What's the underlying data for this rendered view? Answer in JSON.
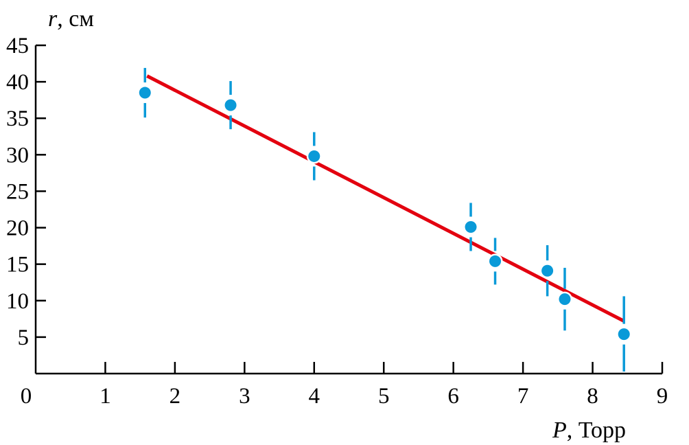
{
  "chart_data": {
    "type": "scatter",
    "xlabel_var": "P",
    "xlabel_unit": ", Торр",
    "ylabel_var": "r",
    "ylabel_unit": ", см",
    "xlim": [
      0,
      9
    ],
    "ylim": [
      0,
      45
    ],
    "x_ticks": [
      "0",
      "1",
      "2",
      "3",
      "4",
      "5",
      "6",
      "7",
      "8",
      "9"
    ],
    "y_ticks": [
      "5",
      "10",
      "15",
      "20",
      "25",
      "30",
      "35",
      "40",
      "45"
    ],
    "grid": false,
    "points": [
      {
        "x": 1.57,
        "y": 38.5,
        "err": 3.4
      },
      {
        "x": 2.8,
        "y": 36.8,
        "err": 3.3
      },
      {
        "x": 4.0,
        "y": 29.8,
        "err": 3.3
      },
      {
        "x": 6.25,
        "y": 20.1,
        "err": 3.3
      },
      {
        "x": 6.6,
        "y": 15.4,
        "err": 3.2
      },
      {
        "x": 7.35,
        "y": 14.1,
        "err": 3.5
      },
      {
        "x": 7.6,
        "y": 10.2,
        "err": 4.3
      },
      {
        "x": 8.45,
        "y": 5.4,
        "err": 5.2
      }
    ],
    "fit_line": {
      "x": [
        1.6,
        8.45
      ],
      "y": [
        40.8,
        7.2
      ]
    },
    "colors": {
      "points": "#0a9ad8",
      "fit": "#e3000f",
      "axes": "#000000"
    }
  }
}
